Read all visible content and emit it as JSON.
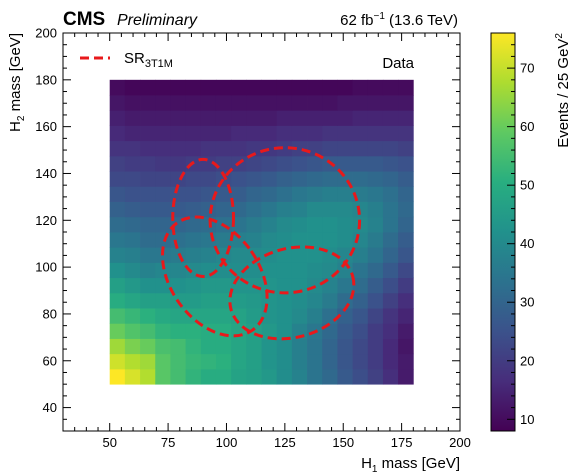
{
  "header": {
    "experiment": "CMS",
    "status": "Preliminary",
    "lumi_value": "62 fb",
    "lumi_exp": "−1",
    "energy": " (13.6 TeV)"
  },
  "annotation": {
    "dataset": "Data"
  },
  "legend": {
    "label_main": "SR",
    "label_sub": "3T1M",
    "line_color": "#e8191b"
  },
  "colorbar": {
    "label": "Events / 25 GeV",
    "label_exp": "2",
    "min": 8,
    "max": 76,
    "ticks": [
      10,
      20,
      30,
      40,
      50,
      60,
      70
    ],
    "colormap": "viridis"
  },
  "chart_data": {
    "type": "heatmap",
    "xlabel_main": "H",
    "xlabel_sub": "1",
    "xlabel_rest": " mass [GeV]",
    "ylabel_main": "H",
    "ylabel_sub": "2",
    "ylabel_rest": " mass [GeV]",
    "xlim": [
      30,
      200
    ],
    "ylim": [
      30,
      200
    ],
    "xticks": [
      50,
      75,
      100,
      125,
      150,
      175,
      200
    ],
    "yticks": [
      40,
      60,
      80,
      100,
      120,
      140,
      160,
      180,
      200
    ],
    "grid": false,
    "legend_placement": "top-left",
    "bin_x_edges": [
      50,
      56.5,
      63,
      69.5,
      76,
      82.5,
      89,
      95.5,
      102,
      108.5,
      115,
      121.5,
      128,
      134.5,
      141,
      147.5,
      154,
      160.5,
      167,
      173.5,
      180
    ],
    "bin_y_edges": [
      50,
      56.5,
      63,
      69.5,
      76,
      82.5,
      89,
      95.5,
      102,
      108.5,
      115,
      121.5,
      128,
      134.5,
      141,
      147.5,
      154,
      160.5,
      167,
      173.5,
      180
    ],
    "z_rows_bottom_to_top": [
      [
        76,
        72,
        68,
        58,
        55,
        52,
        50,
        50,
        47,
        46,
        44,
        41,
        38,
        34,
        31,
        27,
        24,
        21,
        17,
        13
      ],
      [
        71,
        68,
        66,
        58,
        55,
        53,
        52,
        51,
        48,
        46,
        43,
        41,
        37,
        34,
        30,
        26,
        23,
        20,
        16,
        13
      ],
      [
        66,
        62,
        60,
        56,
        55,
        52,
        50,
        50,
        48,
        46,
        43,
        41,
        37,
        34,
        30,
        26,
        23,
        20,
        16,
        12
      ],
      [
        60,
        57,
        55,
        52,
        51,
        51,
        50,
        50,
        48,
        46,
        44,
        42,
        38,
        35,
        31,
        27,
        24,
        20,
        17,
        13
      ],
      [
        55,
        53,
        51,
        49,
        48,
        48,
        48,
        48,
        47,
        45,
        43,
        42,
        40,
        37,
        33,
        29,
        26,
        22,
        18,
        15
      ],
      [
        50,
        48,
        46,
        46,
        45,
        45,
        46,
        46,
        45,
        44,
        43,
        42,
        41,
        39,
        36,
        32,
        29,
        25,
        21,
        17
      ],
      [
        46,
        44,
        42,
        42,
        42,
        43,
        44,
        44,
        43,
        43,
        43,
        42,
        42,
        40,
        38,
        35,
        32,
        28,
        24,
        20
      ],
      [
        42,
        40,
        38,
        39,
        39,
        40,
        41,
        41,
        41,
        41,
        42,
        42,
        42,
        41,
        40,
        38,
        34,
        31,
        27,
        23
      ],
      [
        38,
        37,
        35,
        35,
        36,
        37,
        38,
        39,
        40,
        40,
        41,
        42,
        42,
        42,
        41,
        39,
        37,
        34,
        30,
        26
      ],
      [
        35,
        34,
        32,
        32,
        33,
        34,
        35,
        36,
        37,
        38,
        40,
        41,
        42,
        42,
        42,
        41,
        39,
        36,
        32,
        28
      ],
      [
        32,
        31,
        30,
        30,
        30,
        31,
        32,
        33,
        34,
        36,
        38,
        40,
        41,
        42,
        42,
        41,
        40,
        38,
        34,
        30
      ],
      [
        29,
        28,
        27,
        27,
        27,
        28,
        29,
        30,
        31,
        33,
        35,
        37,
        38,
        40,
        40,
        40,
        39,
        37,
        34,
        31
      ],
      [
        26,
        25,
        25,
        25,
        25,
        25,
        26,
        27,
        28,
        30,
        31,
        33,
        35,
        36,
        37,
        37,
        36,
        35,
        33,
        30
      ],
      [
        23,
        23,
        22,
        22,
        22,
        23,
        23,
        24,
        25,
        26,
        27,
        29,
        30,
        31,
        32,
        32,
        32,
        31,
        30,
        28
      ],
      [
        21,
        20,
        20,
        19,
        19,
        20,
        20,
        21,
        21,
        22,
        23,
        24,
        25,
        26,
        27,
        27,
        27,
        27,
        26,
        25
      ],
      [
        18,
        18,
        17,
        17,
        17,
        17,
        18,
        18,
        18,
        19,
        19,
        20,
        21,
        21,
        22,
        22,
        22,
        22,
        22,
        21
      ],
      [
        16,
        15,
        15,
        15,
        15,
        15,
        15,
        15,
        16,
        16,
        16,
        17,
        17,
        17,
        18,
        18,
        18,
        18,
        18,
        18
      ],
      [
        14,
        13,
        13,
        13,
        13,
        13,
        13,
        13,
        13,
        13,
        13,
        14,
        14,
        14,
        14,
        14,
        15,
        15,
        15,
        15
      ],
      [
        12,
        11,
        11,
        11,
        11,
        11,
        11,
        11,
        11,
        11,
        11,
        11,
        11,
        11,
        11,
        12,
        12,
        12,
        12,
        12
      ],
      [
        10,
        9,
        9,
        9,
        9,
        9,
        9,
        9,
        9,
        9,
        9,
        9,
        9,
        9,
        9,
        9,
        10,
        10,
        10,
        10
      ]
    ],
    "signal_regions": [
      {
        "cx": 90,
        "cy": 121,
        "rx": 13,
        "ry": 25,
        "angle": 0
      },
      {
        "cx": 125,
        "cy": 120,
        "rx": 32,
        "ry": 31,
        "angle": 0
      },
      {
        "cx": 95,
        "cy": 96,
        "rx": 19,
        "ry": 28,
        "angle": -35
      },
      {
        "cx": 128,
        "cy": 89,
        "rx": 27,
        "ry": 19,
        "angle": -15
      }
    ]
  }
}
